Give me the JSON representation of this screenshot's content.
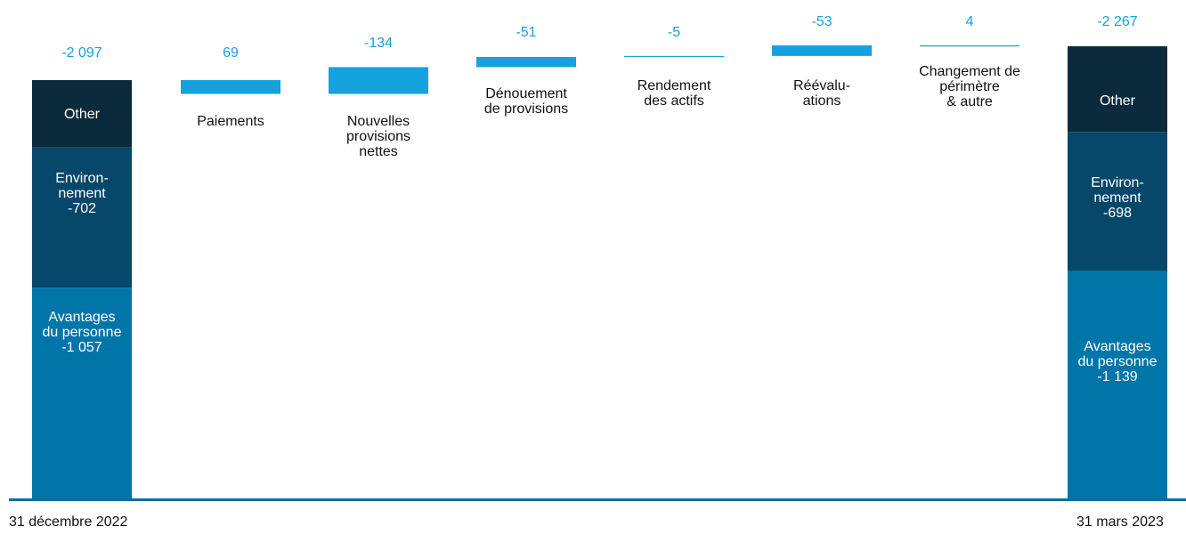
{
  "chart_data": {
    "type": "bar",
    "subtype": "waterfall",
    "categories": [
      "31 décembre 2022",
      "Paiements",
      "Nouvelles\nprovisions\nnettes",
      "Dénouement\nde provisions",
      "Rendement\ndes actifs",
      "Réévalu-\nations",
      "Changement de\npérimètre\n& autre",
      "31 mars 2023"
    ],
    "totals": [
      "-2 097",
      "69",
      "-134",
      "-51",
      "-5",
      "-53",
      "4",
      "-2 267"
    ],
    "start_total": {
      "label": "31 décembre 2022",
      "value": -2097,
      "segments": [
        {
          "name": "Avantages\ndu personne",
          "value": -1057,
          "text": "-1 057"
        },
        {
          "name": "Environ-\nnement",
          "value": -702,
          "text": "-702"
        },
        {
          "name": "Other",
          "value": -338,
          "text": ""
        }
      ]
    },
    "changes": [
      {
        "label": "Paiements",
        "value": 69
      },
      {
        "label": "Nouvelles\nprovisions\nnettes",
        "value": -134
      },
      {
        "label": "Dénouement\nde provisions",
        "value": -51
      },
      {
        "label": "Rendement\ndes actifs",
        "value": -5
      },
      {
        "label": "Réévalu-\nations",
        "value": -53
      },
      {
        "label": "Changement de\npérimètre\n& autre",
        "value": 4
      }
    ],
    "end_total": {
      "label": "31 mars 2023",
      "value": -2267,
      "segments": [
        {
          "name": "Avantages\ndu personne",
          "value": -1139,
          "text": "-1 139"
        },
        {
          "name": "Environ-\nnement",
          "value": -698,
          "text": "-698"
        },
        {
          "name": "Other",
          "value": -430,
          "text": ""
        }
      ]
    },
    "colors": {
      "other": "#0b2b3d",
      "environnement": "#07476a",
      "avantages": "#0075a8",
      "change": "#16a1df",
      "value_text": "#16a1df",
      "baseline": "#0f6e97"
    }
  }
}
